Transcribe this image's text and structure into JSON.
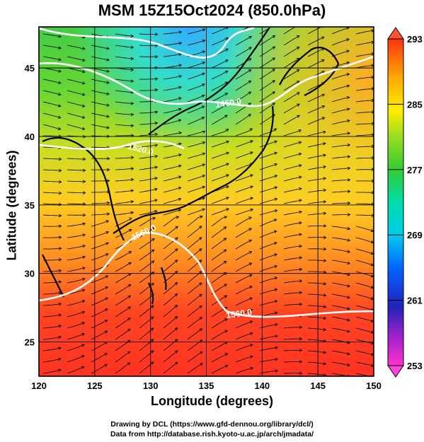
{
  "title": "MSM 15Z15Oct2024 (850.0hPa)",
  "x_axis": {
    "label": "Longitude (degrees)",
    "ticks": [
      "120",
      "125",
      "130",
      "135",
      "140",
      "145",
      "150"
    ]
  },
  "y_axis": {
    "label": "Latitude  (degrees)",
    "ticks": [
      "25",
      "30",
      "35",
      "40",
      "45"
    ]
  },
  "colorbar": {
    "ticks": [
      "293",
      "285",
      "277",
      "269",
      "261",
      "253"
    ],
    "min": 253,
    "max": 293,
    "colors": [
      "#ff00ff",
      "#9900cc",
      "#0000dd",
      "#0066ff",
      "#00ccff",
      "#00e0a0",
      "#33cc33",
      "#99dd00",
      "#ffee00",
      "#ffaa00",
      "#ff5500",
      "#ff2200"
    ]
  },
  "contours": [
    {
      "label": "1460.0"
    },
    {
      "label": "1520.0"
    },
    {
      "label": "1560.0"
    },
    {
      "label": "1560.0"
    }
  ],
  "credits": [
    "Drawing by DCL (https://www.gfd-dennou.org/library/dcl/)",
    "Data from http://database.rish.kyoto-u.ac.jp/arch/jmadata/"
  ],
  "map": {
    "lon_range": [
      120,
      150
    ],
    "lat_range": [
      22.5,
      48
    ],
    "field": "temperature (K)",
    "vectors": "wind streamlines"
  }
}
